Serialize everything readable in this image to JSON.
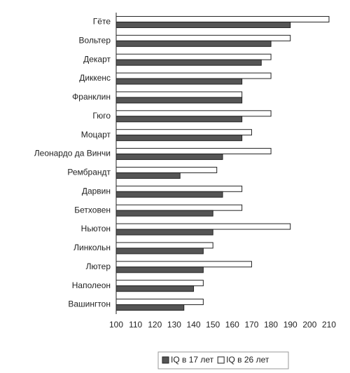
{
  "chart_data": {
    "type": "barh",
    "categories": [
      "Гёте",
      "Вольтер",
      "Декарт",
      "Диккенс",
      "Франклин",
      "Гюго",
      "Моцарт",
      "Леонардо да Винчи",
      "Рембрандт",
      "Дарвин",
      "Бетховен",
      "Ньютон",
      "Линкольн",
      "Лютер",
      "Наполеон",
      "Вашингтон"
    ],
    "series": [
      {
        "name": "IQ в 17 лет",
        "color": "#555555",
        "values": [
          190,
          180,
          175,
          165,
          165,
          165,
          165,
          155,
          133,
          155,
          150,
          150,
          145,
          145,
          140,
          135
        ]
      },
      {
        "name": "IQ в 26 лет",
        "color": "#ffffff",
        "values": [
          210,
          190,
          180,
          180,
          165,
          180,
          170,
          180,
          152,
          165,
          165,
          190,
          150,
          170,
          145,
          145
        ]
      }
    ],
    "xlim": [
      100,
      210
    ],
    "xticks": [
      100,
      110,
      120,
      130,
      140,
      150,
      160,
      170,
      180,
      190,
      200,
      210
    ],
    "legend": "bottom"
  }
}
